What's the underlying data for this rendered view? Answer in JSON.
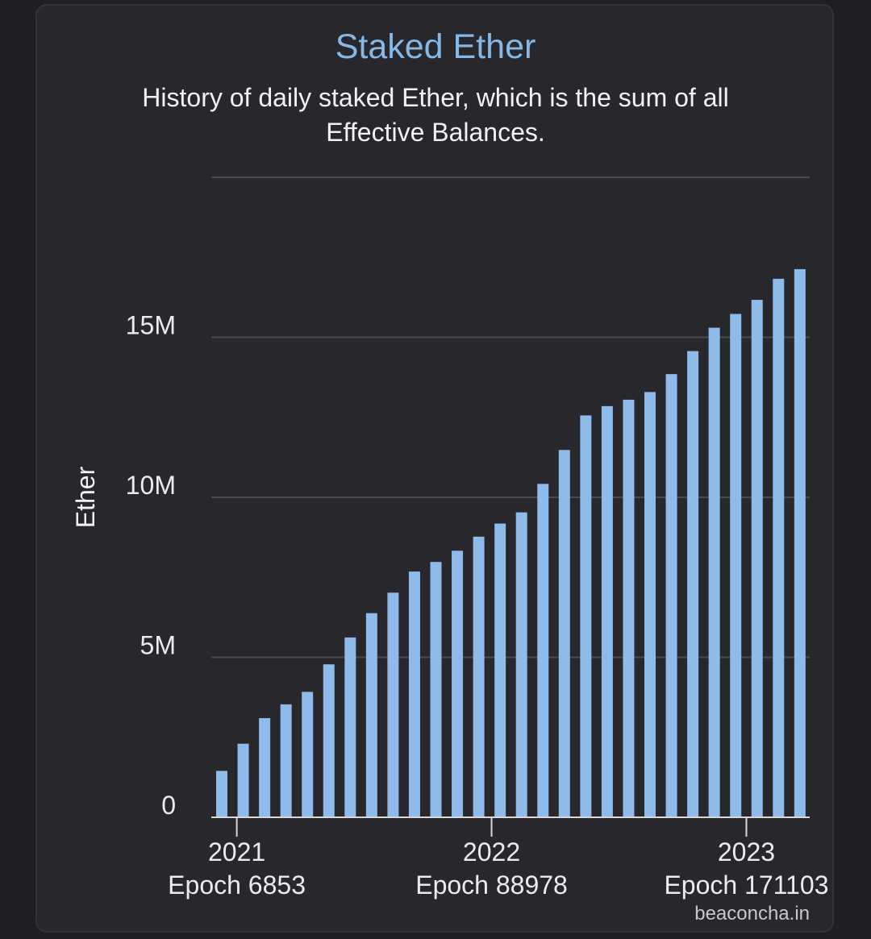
{
  "chart_data": {
    "type": "bar",
    "title": "Staked Ether",
    "subtitle": "History of daily staked Ether, which is the sum of all Effective Balances.",
    "ylabel": "Ether",
    "xlabel": "",
    "ylim": [
      0,
      20000000
    ],
    "yticks": [
      {
        "value": 0,
        "label": "0"
      },
      {
        "value": 5000000,
        "label": "5M"
      },
      {
        "value": 10000000,
        "label": "10M"
      },
      {
        "value": 15000000,
        "label": "15M"
      }
    ],
    "xticks": [
      {
        "index": 0.7,
        "year": "2021",
        "epoch": "Epoch 6853"
      },
      {
        "index": 12.6,
        "year": "2022",
        "epoch": "Epoch 88978"
      },
      {
        "index": 24.5,
        "year": "2023",
        "epoch": "Epoch 171103"
      }
    ],
    "values": [
      1450000,
      2300000,
      3100000,
      3530000,
      3920000,
      4780000,
      5620000,
      6380000,
      7020000,
      7680000,
      7980000,
      8330000,
      8770000,
      9180000,
      9530000,
      10420000,
      11480000,
      12560000,
      12850000,
      13050000,
      13290000,
      13850000,
      14570000,
      15300000,
      15730000,
      16170000,
      16830000,
      17130000
    ],
    "grid": true,
    "bar_color": "#8ebbea"
  },
  "credit": "beaconcha.in"
}
